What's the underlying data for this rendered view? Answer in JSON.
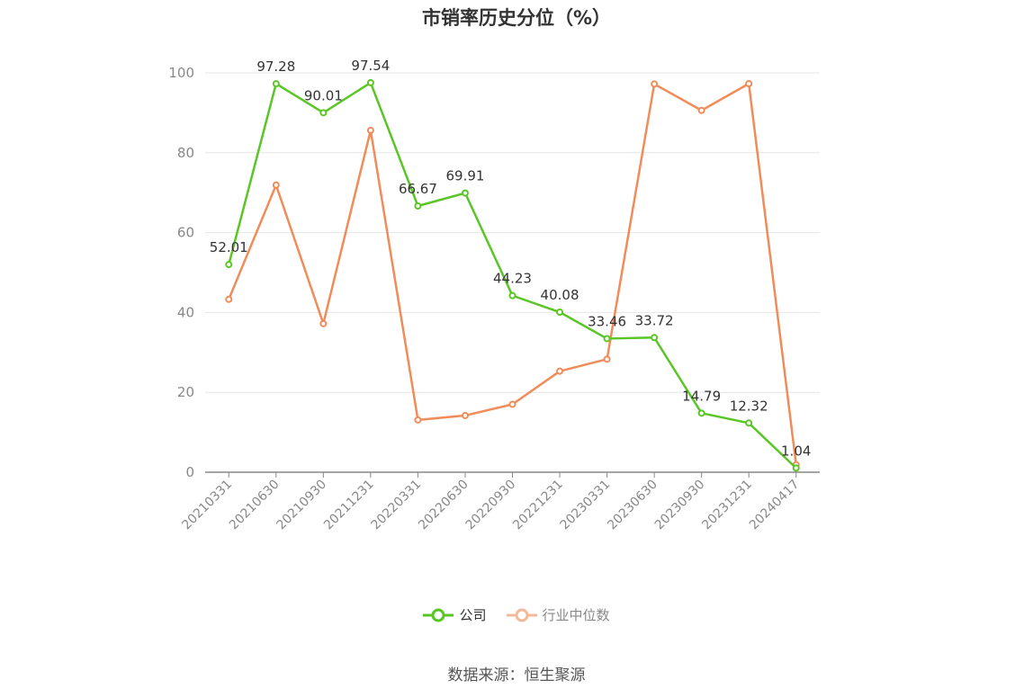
{
  "title": "市销率历史分位（%）",
  "source": "数据来源：恒生聚源",
  "colors": {
    "company": "#5ac626",
    "industry": "#f08c5a",
    "industry_legend": "#f5b89b",
    "grid": "#e6e6e6",
    "axis": "#888888"
  },
  "chart_data": {
    "type": "line",
    "title": "市销率历史分位（%）",
    "categories": [
      "20210331",
      "20210630",
      "20210930",
      "20211231",
      "20220331",
      "20220630",
      "20220930",
      "20221231",
      "20230331",
      "20230630",
      "20230930",
      "20231231",
      "20240417"
    ],
    "ylim": [
      0,
      100
    ],
    "yticks": [
      0,
      20,
      40,
      60,
      80,
      100
    ],
    "grid": true,
    "legend_position": "bottom",
    "series": [
      {
        "name": "公司",
        "values": [
          52.01,
          97.28,
          90.01,
          97.54,
          66.67,
          69.91,
          44.23,
          40.08,
          33.46,
          33.72,
          14.79,
          12.32,
          1.04
        ],
        "labels": [
          "52.01",
          "97.28",
          "90.01",
          "97.54",
          "66.67",
          "69.91",
          "44.23",
          "40.08",
          "33.46",
          "33.72",
          "14.79",
          "12.32",
          "1.04"
        ]
      },
      {
        "name": "行业中位数",
        "values": [
          43.3,
          71.9,
          37.2,
          85.6,
          13.1,
          14.2,
          17.0,
          25.3,
          28.3,
          97.2,
          90.6,
          97.3,
          1.9
        ]
      }
    ]
  }
}
